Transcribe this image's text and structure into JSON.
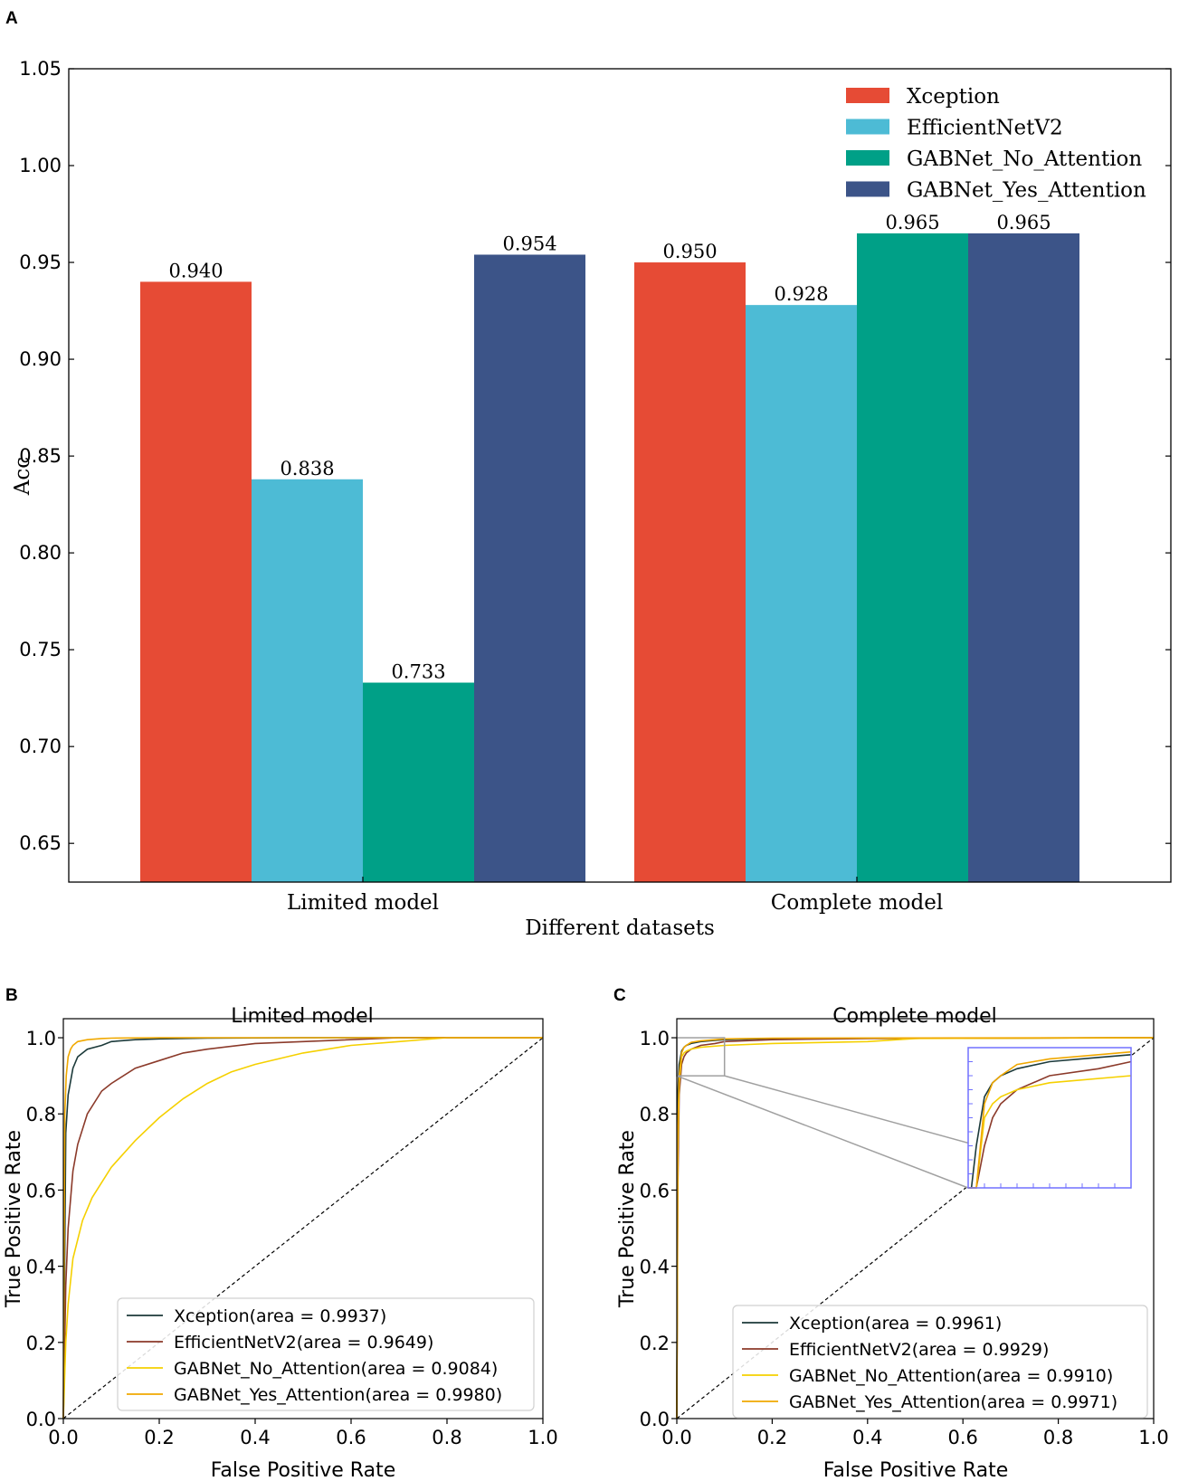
{
  "panels": {
    "a": "A",
    "b": "B",
    "c": "C"
  },
  "colors": {
    "xception_bar": "#e64b35",
    "efficientnet_bar": "#4dbbd5",
    "gab_no_bar": "#00a087",
    "gab_yes_bar": "#3c5488",
    "roc_xception": "#1c3a3a",
    "roc_efficientnet": "#8b3a2a",
    "roc_gab_no": "#f5d000",
    "roc_gab_yes": "#f0a800",
    "diag": "#000000",
    "zoom_box": "#a0a0a0",
    "inset_frame": "#7070ff"
  },
  "chart_data": [
    {
      "type": "bar",
      "title": "",
      "xlabel": "Different datasets",
      "ylabel": "Acc",
      "ylim": [
        0.63,
        1.05
      ],
      "yticks": [
        "0.65",
        "0.70",
        "0.75",
        "0.80",
        "0.85",
        "0.90",
        "0.95",
        "1.00",
        "1.05"
      ],
      "categories": [
        "Limited model",
        "Complete model"
      ],
      "legend_position": "top-right",
      "series": [
        {
          "name": "Xception",
          "values": [
            0.94,
            0.95
          ],
          "labels": [
            "0.940",
            "0.950"
          ]
        },
        {
          "name": "EfficientNetV2",
          "values": [
            0.838,
            0.928
          ],
          "labels": [
            "0.838",
            "0.928"
          ]
        },
        {
          "name": "GABNet_No_Attention",
          "values": [
            0.733,
            0.965
          ],
          "labels": [
            "0.733",
            "0.965"
          ]
        },
        {
          "name": "GABNet_Yes_Attention",
          "values": [
            0.954,
            0.965
          ],
          "labels": [
            "0.954",
            "0.965"
          ]
        }
      ]
    },
    {
      "type": "line",
      "title": "Limited model",
      "xlabel": "False Positive Rate",
      "ylabel": "True Positive Rate",
      "xlim": [
        0,
        1
      ],
      "ylim": [
        0,
        1.05
      ],
      "xticks": [
        "0.0",
        "0.2",
        "0.4",
        "0.6",
        "0.8",
        "1.0"
      ],
      "yticks": [
        "0.0",
        "0.2",
        "0.4",
        "0.6",
        "0.8",
        "1.0"
      ],
      "legend_position": "lower-right",
      "series": [
        {
          "name": "Xception(area = 0.9937)",
          "x": [
            0,
            0.005,
            0.01,
            0.02,
            0.03,
            0.05,
            0.08,
            0.1,
            0.15,
            0.2,
            0.3,
            0.5,
            1.0
          ],
          "y": [
            0,
            0.75,
            0.85,
            0.92,
            0.95,
            0.97,
            0.98,
            0.99,
            0.995,
            0.997,
            0.999,
            1.0,
            1.0
          ]
        },
        {
          "name": "EfficientNetV2(area = 0.9649)",
          "x": [
            0,
            0.005,
            0.01,
            0.02,
            0.03,
            0.05,
            0.08,
            0.1,
            0.15,
            0.2,
            0.25,
            0.3,
            0.4,
            0.5,
            0.7,
            1.0
          ],
          "y": [
            0,
            0.35,
            0.5,
            0.65,
            0.72,
            0.8,
            0.86,
            0.88,
            0.92,
            0.94,
            0.96,
            0.97,
            0.985,
            0.99,
            1.0,
            1.0
          ]
        },
        {
          "name": "GABNet_No_Attention(area = 0.9084)",
          "x": [
            0,
            0.005,
            0.01,
            0.02,
            0.04,
            0.06,
            0.1,
            0.15,
            0.2,
            0.25,
            0.3,
            0.35,
            0.4,
            0.5,
            0.6,
            0.7,
            0.8,
            1.0
          ],
          "y": [
            0,
            0.2,
            0.3,
            0.42,
            0.52,
            0.58,
            0.66,
            0.73,
            0.79,
            0.84,
            0.88,
            0.91,
            0.93,
            0.96,
            0.98,
            0.99,
            1.0,
            1.0
          ]
        },
        {
          "name": "GABNet_Yes_Attention(area = 0.9980)",
          "x": [
            0,
            0.003,
            0.006,
            0.01,
            0.015,
            0.02,
            0.03,
            0.05,
            0.08,
            0.1,
            0.2,
            1.0
          ],
          "y": [
            0,
            0.8,
            0.9,
            0.95,
            0.97,
            0.98,
            0.99,
            0.995,
            0.998,
            0.999,
            1.0,
            1.0
          ]
        }
      ]
    },
    {
      "type": "line",
      "title": "Complete model",
      "xlabel": "False Positive Rate",
      "ylabel": "True Positive Rate",
      "xlim": [
        0,
        1
      ],
      "ylim": [
        0,
        1.05
      ],
      "xticks": [
        "0.0",
        "0.2",
        "0.4",
        "0.6",
        "0.8",
        "1.0"
      ],
      "yticks": [
        "0.0",
        "0.2",
        "0.4",
        "0.6",
        "0.8",
        "1.0"
      ],
      "legend_position": "lower-right",
      "inset": {
        "zoom_xlim": [
          0,
          0.1
        ],
        "zoom_ylim": [
          0.9,
          1.0
        ]
      },
      "series": [
        {
          "name": "Xception(area = 0.9961)",
          "x": [
            0,
            0.002,
            0.005,
            0.01,
            0.015,
            0.02,
            0.03,
            0.05,
            0.08,
            0.1,
            0.2,
            1.0
          ],
          "y": [
            0,
            0.85,
            0.93,
            0.965,
            0.975,
            0.98,
            0.985,
            0.99,
            0.993,
            0.995,
            0.998,
            1.0
          ]
        },
        {
          "name": "EfficientNetV2(area = 0.9929)",
          "x": [
            0,
            0.002,
            0.005,
            0.01,
            0.015,
            0.02,
            0.03,
            0.05,
            0.08,
            0.1,
            0.2,
            0.4,
            1.0
          ],
          "y": [
            0,
            0.6,
            0.85,
            0.93,
            0.95,
            0.96,
            0.97,
            0.98,
            0.985,
            0.99,
            0.995,
            0.998,
            1.0
          ]
        },
        {
          "name": "GABNet_No_Attention(area = 0.9910)",
          "x": [
            0,
            0.002,
            0.005,
            0.01,
            0.015,
            0.02,
            0.03,
            0.05,
            0.1,
            0.2,
            0.4,
            0.5,
            1.0
          ],
          "y": [
            0,
            0.7,
            0.88,
            0.95,
            0.96,
            0.965,
            0.97,
            0.975,
            0.98,
            0.985,
            0.99,
            0.998,
            1.0
          ]
        },
        {
          "name": "GABNet_Yes_Attention(area = 0.9971)",
          "x": [
            0,
            0.002,
            0.005,
            0.01,
            0.015,
            0.02,
            0.03,
            0.05,
            0.08,
            0.1,
            0.2,
            1.0
          ],
          "y": [
            0,
            0.75,
            0.9,
            0.96,
            0.975,
            0.98,
            0.988,
            0.992,
            0.995,
            0.997,
            0.999,
            1.0
          ]
        }
      ]
    }
  ]
}
